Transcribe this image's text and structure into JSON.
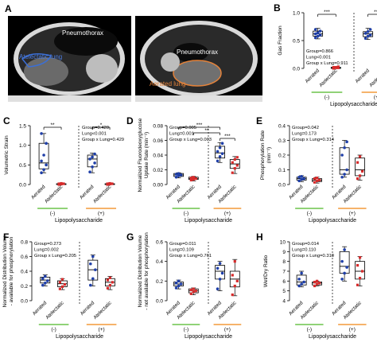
{
  "figure": {
    "panel_labels": [
      "A",
      "B",
      "C",
      "D",
      "E",
      "F",
      "G",
      "H"
    ],
    "ct_labels": {
      "pneumothorax_1": "Pneumothorax",
      "atelectatic_lung": "Atelectatic lung",
      "pneumothorax_2": "Pneumothorax",
      "aerated_lung": "Aerated lung"
    },
    "groups": {
      "minus": "(-)",
      "plus": "(+)"
    },
    "group_axis_label": "Lipopolysaccharide",
    "colors": {
      "aerated": "#1f3fa8",
      "atelectatic": "#d62b2b",
      "neg_bar": "#6cc44a",
      "pos_bar": "#f39a3a"
    }
  },
  "chart_data": [
    {
      "panel": "B",
      "type": "box",
      "ylabel": "Gas Fraction",
      "ylim": [
        0,
        1.0
      ],
      "yticks": [
        "0.0",
        "0.5",
        "1.0"
      ],
      "categories": [
        "Aerated",
        "Atelectatic",
        "Aerated",
        "Atelectatic"
      ],
      "stats": [
        "Group=0.866",
        "Lung<0.001",
        "Group x Lung=0.911"
      ],
      "sig": [
        {
          "label": "***",
          "from": 0,
          "to": 1
        },
        {
          "label": "***",
          "from": 2,
          "to": 3
        }
      ],
      "boxes": [
        {
          "min": 0.53,
          "q1": 0.58,
          "median": 0.62,
          "q3": 0.67,
          "max": 0.72,
          "points": [
            0.55,
            0.58,
            0.6,
            0.62,
            0.64,
            0.67,
            0.7
          ]
        },
        {
          "min": 0.0,
          "q1": 0.0,
          "median": 0.01,
          "q3": 0.02,
          "max": 0.03,
          "points": [
            0.0,
            0.01,
            0.01,
            0.02,
            0.02,
            0.03
          ]
        },
        {
          "min": 0.52,
          "q1": 0.57,
          "median": 0.62,
          "q3": 0.66,
          "max": 0.72,
          "points": [
            0.54,
            0.58,
            0.6,
            0.63,
            0.66,
            0.7
          ]
        },
        {
          "min": 0.0,
          "q1": 0.0,
          "median": 0.01,
          "q3": 0.02,
          "max": 0.03,
          "points": [
            0.0,
            0.01,
            0.02,
            0.02,
            0.03
          ]
        }
      ]
    },
    {
      "panel": "C",
      "type": "box",
      "ylabel": "Volumetric Strain",
      "ylim": [
        0,
        1.5
      ],
      "yticks": [
        "0.0",
        "0.5",
        "1.0",
        "1.5"
      ],
      "categories": [
        "Aerated",
        "Atelectatic",
        "Aerated",
        "Atelectatic"
      ],
      "stats": [
        "Group=0.420",
        "Lung<0.001",
        "Group x Lung=0.429"
      ],
      "sig": [
        {
          "label": "**",
          "from": 0,
          "to": 1
        },
        {
          "label": "*",
          "from": 2,
          "to": 3
        }
      ],
      "boxes": [
        {
          "min": 0.3,
          "q1": 0.4,
          "median": 0.55,
          "q3": 1.05,
          "max": 1.3,
          "points": [
            0.3,
            0.38,
            0.5,
            0.6,
            0.75,
            1.05,
            1.3
          ]
        },
        {
          "min": 0.0,
          "q1": 0.0,
          "median": 0.01,
          "q3": 0.02,
          "max": 0.03,
          "points": [
            0.0,
            0.01,
            0.02,
            0.02,
            0.03
          ]
        },
        {
          "min": 0.3,
          "q1": 0.45,
          "median": 0.65,
          "q3": 0.75,
          "max": 0.8,
          "points": [
            0.32,
            0.45,
            0.55,
            0.65,
            0.7,
            0.78
          ]
        },
        {
          "min": 0.0,
          "q1": 0.0,
          "median": 0.01,
          "q3": 0.02,
          "max": 0.03,
          "points": [
            0.0,
            0.01,
            0.02,
            0.02,
            0.03
          ]
        }
      ]
    },
    {
      "panel": "D",
      "type": "box",
      "ylabel": "Normalized Fluorodeoxyglucose\nUptake Rate (min⁻¹)",
      "ylim": [
        0,
        0.08
      ],
      "yticks": [
        "0.00",
        "0.02",
        "0.04",
        "0.06",
        "0.08"
      ],
      "categories": [
        "Aerated",
        "Atelectatic",
        "Aerated",
        "Atelectatic"
      ],
      "stats": [
        "Group=0.005",
        "Lung=0.001",
        "Group x Lung=0.003"
      ],
      "sig": [
        {
          "label": "***",
          "from": 0,
          "to": 2,
          "level": 3
        },
        {
          "label": "**",
          "from": 1,
          "to": 2,
          "level": 2
        },
        {
          "label": "***",
          "from": 2,
          "to": 3,
          "level": 1
        }
      ],
      "boxes": [
        {
          "min": 0.009,
          "q1": 0.011,
          "median": 0.013,
          "q3": 0.015,
          "max": 0.016,
          "points": [
            0.01,
            0.012,
            0.013,
            0.014,
            0.015
          ]
        },
        {
          "min": 0.005,
          "q1": 0.007,
          "median": 0.008,
          "q3": 0.01,
          "max": 0.011,
          "points": [
            0.006,
            0.007,
            0.008,
            0.009,
            0.01
          ]
        },
        {
          "min": 0.03,
          "q1": 0.036,
          "median": 0.043,
          "q3": 0.052,
          "max": 0.057,
          "points": [
            0.032,
            0.038,
            0.042,
            0.045,
            0.05,
            0.056
          ]
        },
        {
          "min": 0.015,
          "q1": 0.022,
          "median": 0.028,
          "q3": 0.034,
          "max": 0.038,
          "points": [
            0.016,
            0.022,
            0.026,
            0.03,
            0.034,
            0.037
          ]
        }
      ]
    },
    {
      "panel": "E",
      "type": "box",
      "ylabel": "Phosphorylation Rate\n(min⁻¹)",
      "ylim": [
        0,
        0.4
      ],
      "yticks": [
        "0.0",
        "0.1",
        "0.2",
        "0.3",
        "0.4"
      ],
      "categories": [
        "Aerated",
        "Atelectatic",
        "Aerated",
        "Atelectatic"
      ],
      "stats": [
        "Group=0.042",
        "Lung=0.173",
        "Group x Lung=0.314"
      ],
      "sig": [],
      "boxes": [
        {
          "min": 0.02,
          "q1": 0.03,
          "median": 0.04,
          "q3": 0.05,
          "max": 0.06,
          "points": [
            0.025,
            0.035,
            0.04,
            0.05,
            0.055
          ]
        },
        {
          "min": 0.01,
          "q1": 0.02,
          "median": 0.03,
          "q3": 0.04,
          "max": 0.05,
          "points": [
            0.015,
            0.025,
            0.03,
            0.04,
            0.045
          ]
        },
        {
          "min": 0.05,
          "q1": 0.07,
          "median": 0.1,
          "q3": 0.25,
          "max": 0.3,
          "points": [
            0.05,
            0.07,
            0.1,
            0.2,
            0.25,
            0.29
          ]
        },
        {
          "min": 0.03,
          "q1": 0.06,
          "median": 0.1,
          "q3": 0.18,
          "max": 0.2,
          "points": [
            0.04,
            0.06,
            0.09,
            0.15,
            0.19
          ]
        }
      ]
    },
    {
      "panel": "F",
      "type": "box",
      "ylabel": "Normalized Distribution Volume\n- available for phosphorylation",
      "ylim": [
        0,
        0.8
      ],
      "yticks": [
        "0.0",
        "0.2",
        "0.4",
        "0.6",
        "0.8"
      ],
      "categories": [
        "Aerated",
        "Atelectatic",
        "Aerated",
        "Atelectatic"
      ],
      "stats": [
        "Group=0.273",
        "Lung=0.002",
        "Group x Lung=0.205"
      ],
      "sig": [],
      "boxes": [
        {
          "min": 0.2,
          "q1": 0.24,
          "median": 0.28,
          "q3": 0.32,
          "max": 0.35,
          "points": [
            0.21,
            0.24,
            0.27,
            0.3,
            0.33
          ]
        },
        {
          "min": 0.15,
          "q1": 0.19,
          "median": 0.23,
          "q3": 0.27,
          "max": 0.3,
          "points": [
            0.16,
            0.19,
            0.22,
            0.25,
            0.29
          ]
        },
        {
          "min": 0.2,
          "q1": 0.28,
          "median": 0.42,
          "q3": 0.55,
          "max": 0.62,
          "points": [
            0.21,
            0.3,
            0.42,
            0.5,
            0.6
          ]
        },
        {
          "min": 0.15,
          "q1": 0.2,
          "median": 0.25,
          "q3": 0.3,
          "max": 0.33,
          "points": [
            0.17,
            0.21,
            0.25,
            0.28,
            0.31
          ]
        }
      ]
    },
    {
      "panel": "G",
      "type": "box",
      "ylabel": "Normalized Distribution Volume\n- not available for phosphorylation",
      "ylim": [
        0,
        0.6
      ],
      "yticks": [
        "0.0",
        "0.2",
        "0.4",
        "0.6"
      ],
      "categories": [
        "Aerated",
        "Atelectatic",
        "Aerated",
        "Atelectatic"
      ],
      "stats": [
        "Group=0.011",
        "Lung=0.109",
        "Group x Lung=0.761"
      ],
      "sig": [],
      "boxes": [
        {
          "min": 0.12,
          "q1": 0.15,
          "median": 0.17,
          "q3": 0.19,
          "max": 0.21,
          "points": [
            0.13,
            0.15,
            0.17,
            0.18,
            0.2
          ]
        },
        {
          "min": 0.06,
          "q1": 0.08,
          "median": 0.1,
          "q3": 0.12,
          "max": 0.13,
          "points": [
            0.07,
            0.09,
            0.1,
            0.11,
            0.12
          ]
        },
        {
          "min": 0.1,
          "q1": 0.22,
          "median": 0.3,
          "q3": 0.36,
          "max": 0.4,
          "points": [
            0.12,
            0.22,
            0.28,
            0.33,
            0.38
          ]
        },
        {
          "min": 0.05,
          "q1": 0.14,
          "median": 0.22,
          "q3": 0.3,
          "max": 0.42,
          "points": [
            0.06,
            0.15,
            0.2,
            0.26,
            0.4
          ]
        }
      ]
    },
    {
      "panel": "H",
      "type": "box",
      "ylabel": "Wet/Dry Ratio",
      "ylim": [
        4,
        10
      ],
      "yticks": [
        "4",
        "5",
        "6",
        "7",
        "8",
        "9",
        "10"
      ],
      "categories": [
        "Aerated",
        "Atelectatic",
        "Aerated",
        "Atelectatic"
      ],
      "stats": [
        "Group=0.014",
        "Lung=0.110",
        "Group x Lung=0.310"
      ],
      "sig": [],
      "boxes": [
        {
          "min": 5.4,
          "q1": 5.6,
          "median": 5.9,
          "q3": 6.6,
          "max": 7.0,
          "points": [
            5.5,
            5.7,
            5.9,
            6.2,
            6.8
          ]
        },
        {
          "min": 5.5,
          "q1": 5.6,
          "median": 5.8,
          "q3": 5.9,
          "max": 6.0,
          "points": [
            5.5,
            5.7,
            5.8,
            5.9,
            6.0
          ]
        },
        {
          "min": 6.0,
          "q1": 6.8,
          "median": 7.5,
          "q3": 9.0,
          "max": 9.5,
          "points": [
            6.2,
            6.8,
            7.4,
            8.0,
            9.2
          ]
        },
        {
          "min": 5.5,
          "q1": 6.2,
          "median": 7.0,
          "q3": 8.0,
          "max": 8.5,
          "points": [
            5.6,
            6.3,
            7.0,
            7.6,
            8.4
          ]
        }
      ]
    }
  ]
}
